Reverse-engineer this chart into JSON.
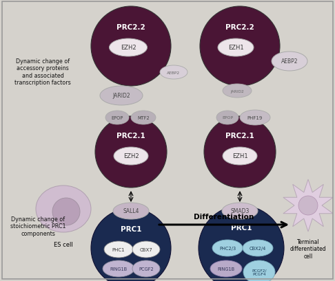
{
  "bg_color": "#d5d2cc",
  "border_color": "#999999",
  "left_label1": "Dynamic change of\naccessory proteins\nand associated\ntranscription factors",
  "left_label2": "Dynamic change of\nstoichiometric PRC1\ncomponents",
  "differentiation_label": "Differentiation",
  "es_cell_label": "ES cell",
  "terminal_label": "Terminal\ndifferentiated\ncell",
  "prc2_color": "#4a1535",
  "prc1_color": "#1a2a50",
  "ezh_color": "#ede5ea",
  "jarid2_large_color": "#c5bcc5",
  "jarid2_small_color": "#c0b8bf",
  "aebp2_color": "#d8cfd8",
  "epop_color": "#b8b0b8",
  "mtf2_color": "#b8b0b8",
  "phf19_color": "#c5bcc5",
  "sall4_color": "#c5b5c5",
  "smad3_color": "#cdbdcd",
  "phc_cbx_white": "#eeeeee",
  "ring1b_purple": "#c0b4d0",
  "phc23_blue": "#9fd0e0",
  "cbx24_blue": "#9fd0e0",
  "ring1b2_purple": "#b8aac8",
  "pcgf24_blue": "#9fd0e0",
  "es_outer": "#d0bdd0",
  "es_nucleus": "#b8a0b8",
  "tc_outer": "#e0cee0",
  "tc_nucleus": "#cbb8cb"
}
